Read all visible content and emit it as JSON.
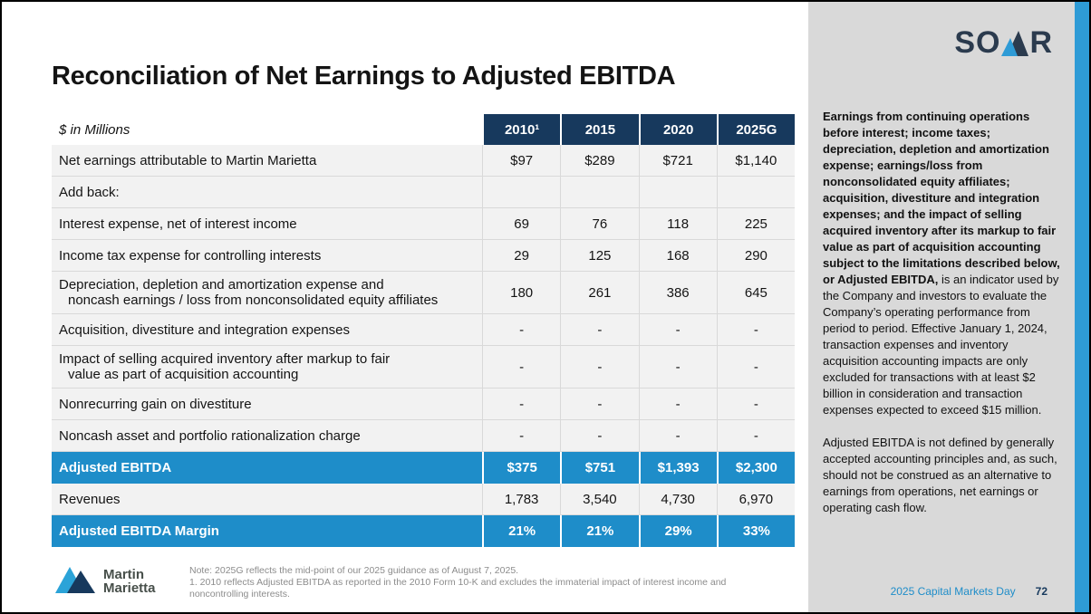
{
  "slide": {
    "title": "Reconciliation of Net Earnings to Adjusted EBITDA",
    "units_label": "$ in Millions"
  },
  "table": {
    "columns": [
      "2010¹",
      "2015",
      "2020",
      "2025G"
    ],
    "rows": [
      {
        "label": "Net earnings attributable to Martin Marietta",
        "values": [
          "$97",
          "$289",
          "$721",
          "$1,140"
        ],
        "style": "normal"
      },
      {
        "label": "Add back:",
        "values": [
          "",
          "",
          "",
          ""
        ],
        "style": "normal"
      },
      {
        "label": "Interest expense, net of interest income",
        "values": [
          "69",
          "76",
          "118",
          "225"
        ],
        "style": "normal"
      },
      {
        "label": "Income tax expense for controlling interests",
        "values": [
          "29",
          "125",
          "168",
          "290"
        ],
        "style": "normal"
      },
      {
        "label": "Depreciation, depletion and amortization expense and",
        "label2": "noncash earnings / loss from nonconsolidated equity affiliates",
        "values": [
          "180",
          "261",
          "386",
          "645"
        ],
        "style": "normal"
      },
      {
        "label": "Acquisition, divestiture and integration expenses",
        "values": [
          "-",
          "-",
          "-",
          "-"
        ],
        "style": "normal"
      },
      {
        "label": "Impact of selling acquired inventory after markup to fair",
        "label2": "value as part of acquisition accounting",
        "values": [
          "-",
          "-",
          "-",
          "-"
        ],
        "style": "normal"
      },
      {
        "label": "Nonrecurring gain on divestiture",
        "values": [
          "-",
          "-",
          "-",
          "-"
        ],
        "style": "normal"
      },
      {
        "label": "Noncash asset and portfolio rationalization charge",
        "values": [
          "-",
          "-",
          "-",
          "-"
        ],
        "style": "normal"
      },
      {
        "label": "Adjusted EBITDA",
        "values": [
          "$375",
          "$751",
          "$1,393",
          "$2,300"
        ],
        "style": "highlight"
      },
      {
        "label": "Revenues",
        "values": [
          "1,783",
          "3,540",
          "4,730",
          "6,970"
        ],
        "style": "normal"
      },
      {
        "label": "Adjusted EBITDA Margin",
        "values": [
          "21%",
          "21%",
          "29%",
          "33%"
        ],
        "style": "highlight"
      }
    ]
  },
  "sidebar": {
    "paragraph1_bold": "Earnings from continuing operations before interest; income taxes; depreciation, depletion and amortization expense; earnings/loss from nonconsolidated equity affiliates; acquisition, divestiture and integration expenses; and the impact of selling acquired inventory after its markup to fair value as part of acquisition accounting subject to the limitations described below, or Adjusted EBITDA,",
    "paragraph1_rest": " is an indicator used by the Company and investors to evaluate the Company’s operating performance from period to period. Effective January 1, 2024, transaction expenses and inventory acquisition accounting impacts are only excluded for transactions with at least $2 billion in consideration and transaction expenses expected to exceed $15 million.",
    "paragraph2": "Adjusted EBITDA is not defined by generally accepted accounting principles and, as such, should not be construed as an alternative to earnings from operations, net earnings or operating cash flow."
  },
  "footer": {
    "note1": "Note: 2025G reflects the mid-point of our 2025 guidance as of August 7, 2025.",
    "note2": "1. 2010 reflects Adjusted EBITDA as reported in the 2010 Form 10-K and excludes the immaterial impact of interest income and noncontrolling interests.",
    "event": "2025 Capital Markets Day",
    "page": "72"
  },
  "logos": {
    "soar_left": "SO",
    "soar_right": "R",
    "martin_line1": "Martin",
    "martin_line2": "Marietta"
  },
  "colors": {
    "header_navy": "#17395d",
    "highlight_blue": "#1e8dc9",
    "strip_blue": "#2e9bd6",
    "sidebar_gray": "#d9d9d9",
    "row_gray": "#f2f2f2"
  }
}
